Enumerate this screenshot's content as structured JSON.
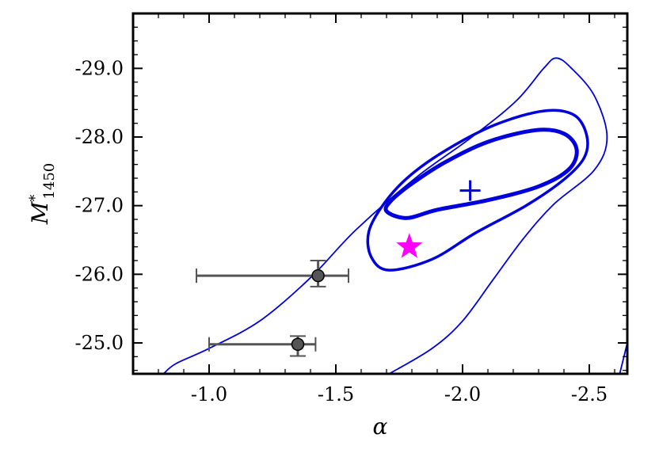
{
  "chart_data": {
    "type": "scatter",
    "title": "",
    "xlabel": "α",
    "ylabel": {
      "main": "M",
      "superscript": "*",
      "subscript": "1450"
    },
    "xlim": [
      -0.7,
      -2.65
    ],
    "ylim": [
      -24.55,
      -29.8
    ],
    "x_axis_inverted": true,
    "y_axis_inverted": true,
    "x_ticks": [
      -1.0,
      -1.5,
      -2.0,
      -2.5
    ],
    "x_tick_labels": [
      "-1.0",
      "-1.5",
      "-2.0",
      "-2.5"
    ],
    "y_ticks": [
      -25.0,
      -26.0,
      -27.0,
      -28.0,
      -29.0
    ],
    "y_tick_labels": [
      "-25.0",
      "-26.0",
      "-27.0",
      "-28.0",
      "-29.0"
    ],
    "grid": false,
    "colors": {
      "contour": "#0000dd",
      "best_fit": "#0000dd",
      "star": "#ff00ff",
      "points": "#555555",
      "errorbars": "#555555"
    },
    "best_fit": {
      "x": -2.03,
      "y": -27.22,
      "marker": "plus"
    },
    "star_point": {
      "x": -1.79,
      "y": -26.4,
      "marker": "star"
    },
    "data_points": [
      {
        "x": -1.43,
        "y": -25.98,
        "xerr": [
          0.48,
          0.12
        ],
        "yerr": [
          0.22,
          0.16
        ]
      },
      {
        "x": -1.35,
        "y": -24.98,
        "xerr": [
          0.35,
          0.07
        ],
        "yerr": [
          0.12,
          0.17
        ]
      }
    ],
    "contours": [
      {
        "level": "inner",
        "stroke_width": 5,
        "points": [
          [
            -1.7,
            -26.92
          ],
          [
            -1.72,
            -27.08
          ],
          [
            -1.8,
            -27.32
          ],
          [
            -1.93,
            -27.63
          ],
          [
            -2.1,
            -27.93
          ],
          [
            -2.29,
            -28.1
          ],
          [
            -2.4,
            -28.05
          ],
          [
            -2.45,
            -27.82
          ],
          [
            -2.42,
            -27.53
          ],
          [
            -2.3,
            -27.28
          ],
          [
            -2.1,
            -27.08
          ],
          [
            -1.9,
            -26.94
          ],
          [
            -1.78,
            -26.82
          ]
        ]
      },
      {
        "level": "middle",
        "stroke_width": 3.5,
        "points": [
          [
            -1.71,
            -26.06
          ],
          [
            -1.64,
            -26.25
          ],
          [
            -1.63,
            -26.62
          ],
          [
            -1.69,
            -27.03
          ],
          [
            -1.79,
            -27.43
          ],
          [
            -1.94,
            -27.82
          ],
          [
            -2.13,
            -28.18
          ],
          [
            -2.32,
            -28.38
          ],
          [
            -2.44,
            -28.32
          ],
          [
            -2.49,
            -28.02
          ],
          [
            -2.48,
            -27.7
          ],
          [
            -2.4,
            -27.38
          ],
          [
            -2.25,
            -27.0
          ],
          [
            -2.05,
            -26.6
          ],
          [
            -1.88,
            -26.22
          ]
        ]
      },
      {
        "level": "outer",
        "stroke_width": 1.8,
        "points": [
          [
            -0.82,
            -24.55
          ],
          [
            -0.87,
            -24.7
          ],
          [
            -1.0,
            -24.92
          ],
          [
            -1.2,
            -25.32
          ],
          [
            -1.4,
            -25.95
          ],
          [
            -1.58,
            -26.65
          ],
          [
            -1.82,
            -27.42
          ],
          [
            -2.03,
            -27.98
          ],
          [
            -2.21,
            -28.52
          ],
          [
            -2.32,
            -29.0
          ],
          [
            -2.37,
            -29.15
          ],
          [
            -2.43,
            -29.0
          ],
          [
            -2.52,
            -28.6
          ],
          [
            -2.57,
            -28.0
          ],
          [
            -2.52,
            -27.52
          ],
          [
            -2.36,
            -27.02
          ],
          [
            -2.24,
            -26.52
          ],
          [
            -2.12,
            -25.92
          ],
          [
            -2.0,
            -25.32
          ],
          [
            -1.88,
            -24.92
          ],
          [
            -1.71,
            -24.55
          ]
        ]
      },
      {
        "level": "outer-corner",
        "stroke_width": 1.8,
        "points": [
          [
            -2.66,
            -25.15
          ],
          [
            -2.64,
            -24.85
          ],
          [
            -2.62,
            -24.55
          ]
        ]
      }
    ]
  }
}
